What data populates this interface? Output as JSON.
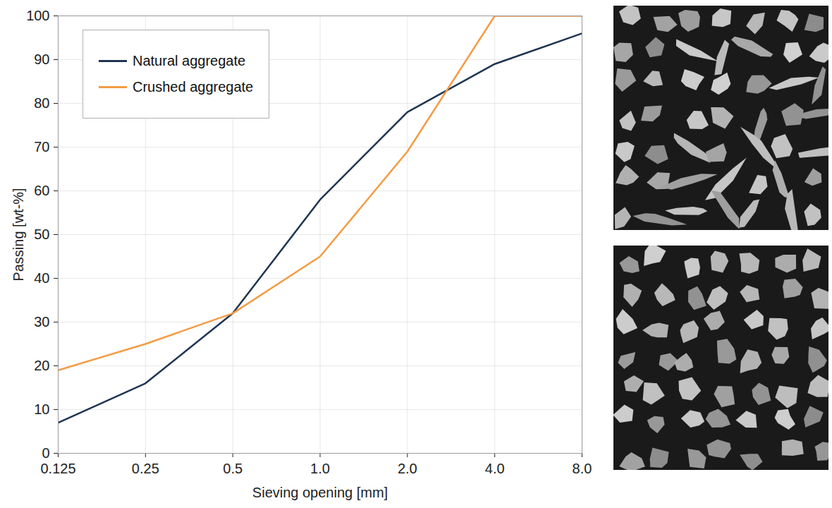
{
  "chart_data": {
    "type": "line",
    "x": [
      0.125,
      0.25,
      0.5,
      1,
      2,
      4,
      8
    ],
    "series": [
      {
        "name": "Natural aggregate",
        "color": "#1f3552",
        "values": [
          7,
          16,
          32,
          58,
          78,
          89,
          96
        ]
      },
      {
        "name": "Crushed aggregate",
        "color": "#f39c45",
        "values": [
          19,
          25,
          32,
          45,
          69,
          100,
          100
        ]
      }
    ],
    "xlabel": "Sieving opening [mm]",
    "ylabel": "Passing [wt-%]",
    "xlim": [
      0.125,
      8
    ],
    "xticks": [
      0.125,
      0.25,
      0.5,
      {
        "value": 1,
        "label": "1.0"
      },
      {
        "value": 2,
        "label": "2.0"
      },
      {
        "value": 4,
        "label": "4.0"
      },
      {
        "value": 8,
        "label": "8.0"
      }
    ],
    "ylim": [
      0,
      100
    ],
    "yticks": [
      0,
      10,
      20,
      30,
      40,
      50,
      60,
      70,
      80,
      90,
      100
    ],
    "log": "x",
    "grid": true,
    "legend": "top-left"
  }
}
